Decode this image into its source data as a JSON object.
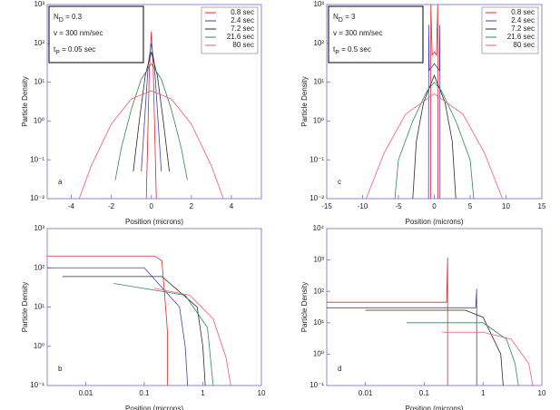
{
  "charts": [
    {
      "type": "line",
      "label": "a",
      "xlabel": "Position (microns)",
      "ylabel": "Particle Density",
      "xlim": [
        -5.2,
        5.5
      ],
      "xticks": [
        -4,
        -2,
        0,
        2,
        4
      ],
      "ylim": [
        0.01,
        1000
      ],
      "ylog": true,
      "yticks": [
        {
          "value": 0.01,
          "label": "10⁻²"
        },
        {
          "value": 0.1,
          "label": "10⁻¹"
        },
        {
          "value": 1,
          "label": "10⁰"
        },
        {
          "value": 10,
          "label": "10¹"
        },
        {
          "value": 100,
          "label": "10²"
        },
        {
          "value": 1000,
          "label": "10³"
        }
      ],
      "params": [
        {
          "main": "N",
          "sub": "D",
          "rest": " = 0.3"
        },
        {
          "main": "v = 300 nm/sec"
        },
        {
          "main": "t",
          "sub": "P",
          "rest": " = 0.05 sec"
        }
      ],
      "legend": "upper right",
      "series": [
        {
          "name": "0.8 sec",
          "color": "#e3262b",
          "x": [
            -0.25,
            -0.1,
            0,
            0.1,
            0.25
          ],
          "values": [
            0.01,
            20,
            200,
            20,
            0.01
          ]
        },
        {
          "name": "2.4 sec",
          "color": "#4141b0",
          "x": [
            -0.5,
            -0.3,
            -0.15,
            0,
            0.15,
            0.3,
            0.5
          ],
          "values": [
            0.05,
            2,
            30,
            100,
            30,
            2,
            0.05
          ]
        },
        {
          "name": "7.2 sec",
          "color": "#2a2a2a",
          "x": [
            -0.9,
            -0.6,
            -0.3,
            0,
            0.3,
            0.6,
            0.9
          ],
          "values": [
            0.05,
            1,
            15,
            60,
            15,
            1,
            0.05
          ]
        },
        {
          "name": "21.6 sec",
          "color": "#2f8a4e",
          "x": [
            -1.8,
            -1.5,
            -1,
            -0.5,
            0,
            0.5,
            1,
            1.5,
            1.8
          ],
          "values": [
            0.03,
            0.2,
            2,
            12,
            30,
            12,
            2,
            0.2,
            0.03
          ]
        },
        {
          "name": "80 sec",
          "color": "#ee5a78",
          "x": [
            -3.6,
            -3,
            -2,
            -1,
            0,
            1,
            2,
            3,
            3.6
          ],
          "values": [
            0.01,
            0.07,
            0.83,
            3.7,
            6,
            3.7,
            0.83,
            0.07,
            0.01
          ]
        }
      ]
    },
    {
      "type": "line",
      "label": "c",
      "xlabel": "Position (microns)",
      "ylabel": "Particle Density",
      "xlim": [
        -15,
        15
      ],
      "xticks": [
        -15,
        -10,
        -5,
        0,
        5,
        10,
        15
      ],
      "ylim": [
        0.01,
        1000
      ],
      "ylog": true,
      "yticks": [
        {
          "value": 0.01,
          "label": "10⁻²"
        },
        {
          "value": 0.1,
          "label": "10⁻¹"
        },
        {
          "value": 1,
          "label": "10⁰"
        },
        {
          "value": 10,
          "label": "10¹"
        },
        {
          "value": 100,
          "label": "10²"
        },
        {
          "value": 1000,
          "label": "10³"
        }
      ],
      "params": [
        {
          "main": "N",
          "sub": "D",
          "rest": " = 3"
        },
        {
          "main": "v = 300 nm/sec"
        },
        {
          "main": "t",
          "sub": "P",
          "rest": " = 0.5 sec"
        }
      ],
      "legend": "upper right",
      "series": [
        {
          "name": "0.8 sec",
          "color": "#e3262b",
          "x": [
            -0.5,
            -0.48,
            -0.3,
            0,
            0.3,
            0.48,
            0.5
          ],
          "values": [
            0.01,
            1000,
            50,
            60,
            50,
            1000,
            0.01
          ]
        },
        {
          "name": "2.4 sec",
          "color": "#4141b0",
          "x": [
            -0.8,
            -0.78,
            -0.7,
            0,
            0.7,
            0.78,
            0.8
          ],
          "values": [
            0.01,
            300,
            20,
            30,
            20,
            300,
            0.01
          ]
        },
        {
          "name": "7.2 sec",
          "color": "#2a2a2a",
          "x": [
            -3,
            -2.5,
            -1.5,
            0,
            1.5,
            2.5,
            3
          ],
          "values": [
            0.01,
            0.3,
            3,
            15,
            3,
            0.3,
            0.01
          ]
        },
        {
          "name": "21.6 sec",
          "color": "#2f8a4e",
          "x": [
            -5.5,
            -5,
            -3,
            -1,
            0,
            1,
            3,
            5,
            5.5
          ],
          "values": [
            0.01,
            0.1,
            1,
            6,
            10,
            6,
            1,
            0.1,
            0.01
          ]
        },
        {
          "name": "80 sec",
          "color": "#ee5a78",
          "x": [
            -9.5,
            -7,
            -4,
            0,
            4,
            7,
            9.5
          ],
          "values": [
            0.01,
            0.15,
            1.5,
            5,
            1.5,
            0.15,
            0.01
          ]
        }
      ]
    },
    {
      "type": "line",
      "label": "b",
      "xlabel": "Position (microns)",
      "ylabel": "Particle Density",
      "xlim": [
        0.0022,
        10
      ],
      "xlog": true,
      "xticks": [
        0.01,
        0.1,
        1,
        10
      ],
      "ylim": [
        0.1,
        1000
      ],
      "ylog": true,
      "yticks": [
        {
          "value": 0.1,
          "label": "10⁻¹"
        },
        {
          "value": 1,
          "label": "10⁰"
        },
        {
          "value": 10,
          "label": "10¹"
        },
        {
          "value": 100,
          "label": "10²"
        },
        {
          "value": 1000,
          "label": "10³"
        }
      ],
      "series": [
        {
          "color": "#e3262b",
          "x": [
            0.0022,
            0.15,
            0.2,
            0.24,
            0.25,
            0.25
          ],
          "values": [
            200,
            200,
            150,
            5,
            2,
            0.1
          ]
        },
        {
          "color": "#4141b0",
          "x": [
            0.0022,
            0.1,
            0.4,
            0.5,
            0.55
          ],
          "values": [
            100,
            100,
            10,
            1,
            0.1
          ]
        },
        {
          "color": "#2a2a2a",
          "x": [
            0.004,
            0.2,
            0.8,
            1,
            1.1
          ],
          "values": [
            60,
            60,
            10,
            1,
            0.1
          ]
        },
        {
          "color": "#2f8a4e",
          "x": [
            0.03,
            0.5,
            1.2,
            1.5
          ],
          "values": [
            40,
            20,
            3,
            0.1
          ]
        },
        {
          "color": "#ee5a78",
          "x": [
            0.15,
            0.6,
            1.5,
            2.5,
            3
          ],
          "values": [
            30,
            20,
            5,
            0.5,
            0.1
          ]
        }
      ]
    },
    {
      "type": "line",
      "label": "d",
      "xlabel": "Position (microns)",
      "ylabel": "Particle Density",
      "xlim": [
        0.0022,
        10
      ],
      "xlog": true,
      "xticks": [
        0.01,
        0.1,
        1,
        10
      ],
      "ylim": [
        0.1,
        10000
      ],
      "ylog": true,
      "yticks": [
        {
          "value": 0.1,
          "label": "10⁻¹"
        },
        {
          "value": 1,
          "label": "10⁰"
        },
        {
          "value": 10,
          "label": "10¹"
        },
        {
          "value": 100,
          "label": "10²"
        },
        {
          "value": 1000,
          "label": "10³"
        },
        {
          "value": 10000,
          "label": "10⁴"
        }
      ],
      "series": [
        {
          "color": "#e3262b",
          "x": [
            0.0022,
            0.24,
            0.25,
            0.25
          ],
          "values": [
            45,
            45,
            1200,
            0.1
          ]
        },
        {
          "color": "#4141b0",
          "x": [
            0.0022,
            0.75,
            0.78,
            0.78
          ],
          "values": [
            30,
            30,
            120,
            0.1
          ]
        },
        {
          "color": "#2a2a2a",
          "x": [
            0.01,
            0.5,
            1,
            2,
            2.2
          ],
          "values": [
            25,
            25,
            15,
            1,
            0.1
          ]
        },
        {
          "color": "#2f8a4e",
          "x": [
            0.05,
            1,
            2.5,
            3.5,
            4
          ],
          "values": [
            10,
            10,
            3,
            0.5,
            0.1
          ]
        },
        {
          "color": "#ee5a78",
          "x": [
            0.2,
            1,
            3,
            6,
            7
          ],
          "values": [
            5,
            5,
            3,
            0.5,
            0.1
          ]
        }
      ]
    }
  ]
}
